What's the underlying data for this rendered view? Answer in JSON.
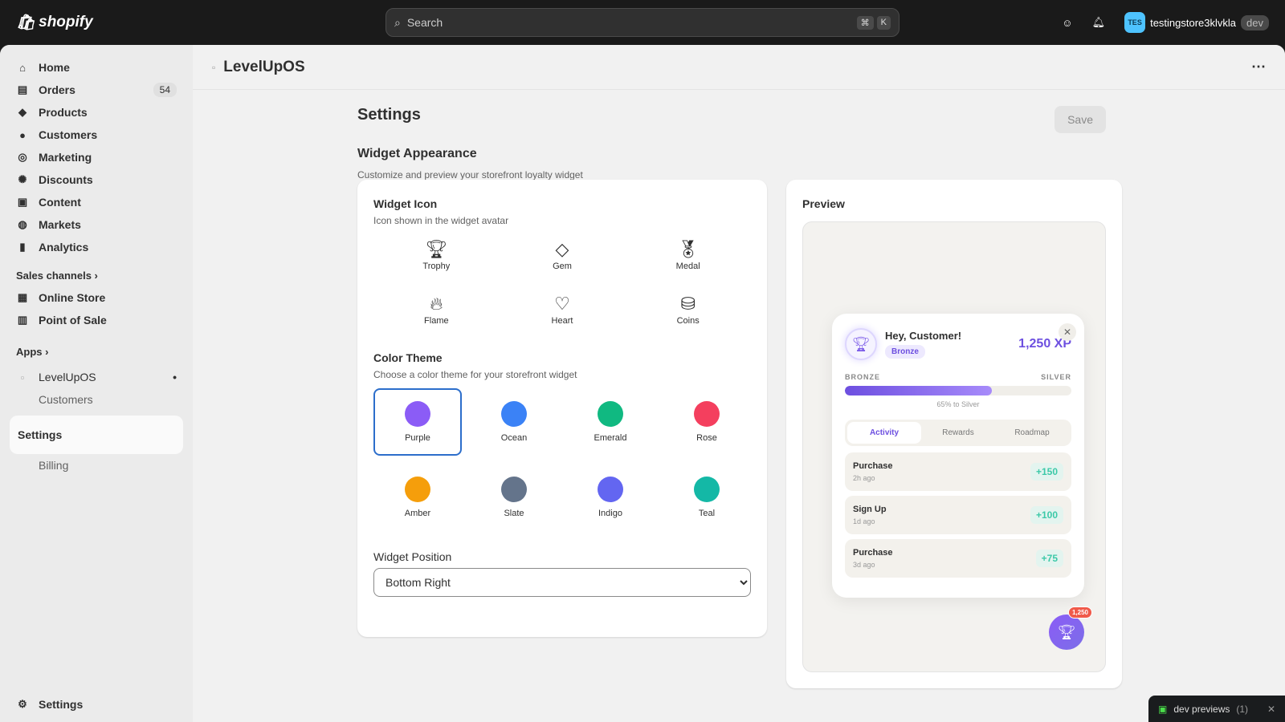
{
  "topbar": {
    "brand": "shopify",
    "search_placeholder": "Search",
    "shortcut": [
      "⌘",
      "K"
    ],
    "avatar_initials": "TES",
    "store_name": "testingstore3klvkla",
    "store_badge": "dev"
  },
  "sidebar": {
    "items": [
      {
        "label": "Home",
        "icon": "⌂"
      },
      {
        "label": "Orders",
        "icon": "▤",
        "count": "54"
      },
      {
        "label": "Products",
        "icon": "◆"
      },
      {
        "label": "Customers",
        "icon": "●"
      },
      {
        "label": "Marketing",
        "icon": "◎"
      },
      {
        "label": "Discounts",
        "icon": "✺"
      },
      {
        "label": "Content",
        "icon": "▣"
      },
      {
        "label": "Markets",
        "icon": "◍"
      },
      {
        "label": "Analytics",
        "icon": "▮"
      }
    ],
    "sales_channels": "Sales channels ›",
    "channels": [
      {
        "label": "Online Store"
      },
      {
        "label": "Point of Sale"
      }
    ],
    "apps": "Apps ›",
    "app_name": "LevelUpOS",
    "app_subitems": [
      "Customers",
      "Settings",
      "Billing"
    ],
    "settings": "Settings"
  },
  "page": {
    "app_title": "LevelUpOS",
    "title": "Settings",
    "save": "Save",
    "section_title": "Widget Appearance",
    "section_subtitle": "Customize and preview your storefront loyalty widget"
  },
  "widget_icon": {
    "title": "Widget Icon",
    "subtitle": "Icon shown in the widget avatar",
    "options": [
      {
        "label": "Trophy",
        "glyph": "🏆︎"
      },
      {
        "label": "Gem",
        "glyph": "◇"
      },
      {
        "label": "Medal",
        "glyph": "🏅︎"
      },
      {
        "label": "Flame",
        "glyph": "🔥︎"
      },
      {
        "label": "Heart",
        "glyph": "♡"
      },
      {
        "label": "Coins",
        "glyph": "⛁"
      }
    ]
  },
  "color_theme": {
    "title": "Color Theme",
    "subtitle": "Choose a color theme for your storefront widget",
    "selected": "Purple",
    "options": [
      {
        "label": "Purple",
        "color": "#8b5cf6"
      },
      {
        "label": "Ocean",
        "color": "#3b82f6"
      },
      {
        "label": "Emerald",
        "color": "#10b981"
      },
      {
        "label": "Rose",
        "color": "#f43f5e"
      },
      {
        "label": "Amber",
        "color": "#f59e0b"
      },
      {
        "label": "Slate",
        "color": "#64748b"
      },
      {
        "label": "Indigo",
        "color": "#6366f1"
      },
      {
        "label": "Teal",
        "color": "#14b8a6"
      }
    ]
  },
  "position": {
    "label": "Widget Position",
    "value": "Bottom Right"
  },
  "preview": {
    "title": "Preview",
    "greeting": "Hey, Customer!",
    "tier": "Bronze",
    "xp": "1,250 XP",
    "from": "BRONZE",
    "to": "SILVER",
    "progress_percent": 65,
    "progress_text": "65% to Silver",
    "tabs": [
      "Activity",
      "Rewards",
      "Roadmap"
    ],
    "active_tab": "Activity",
    "activities": [
      {
        "name": "Purchase",
        "time": "2h ago",
        "points": "+150"
      },
      {
        "name": "Sign Up",
        "time": "1d ago",
        "points": "+100"
      },
      {
        "name": "Purchase",
        "time": "3d ago",
        "points": "+75"
      }
    ],
    "fab_badge": "1,250"
  },
  "dev_previews": {
    "label": "dev previews",
    "count": "(1)"
  }
}
